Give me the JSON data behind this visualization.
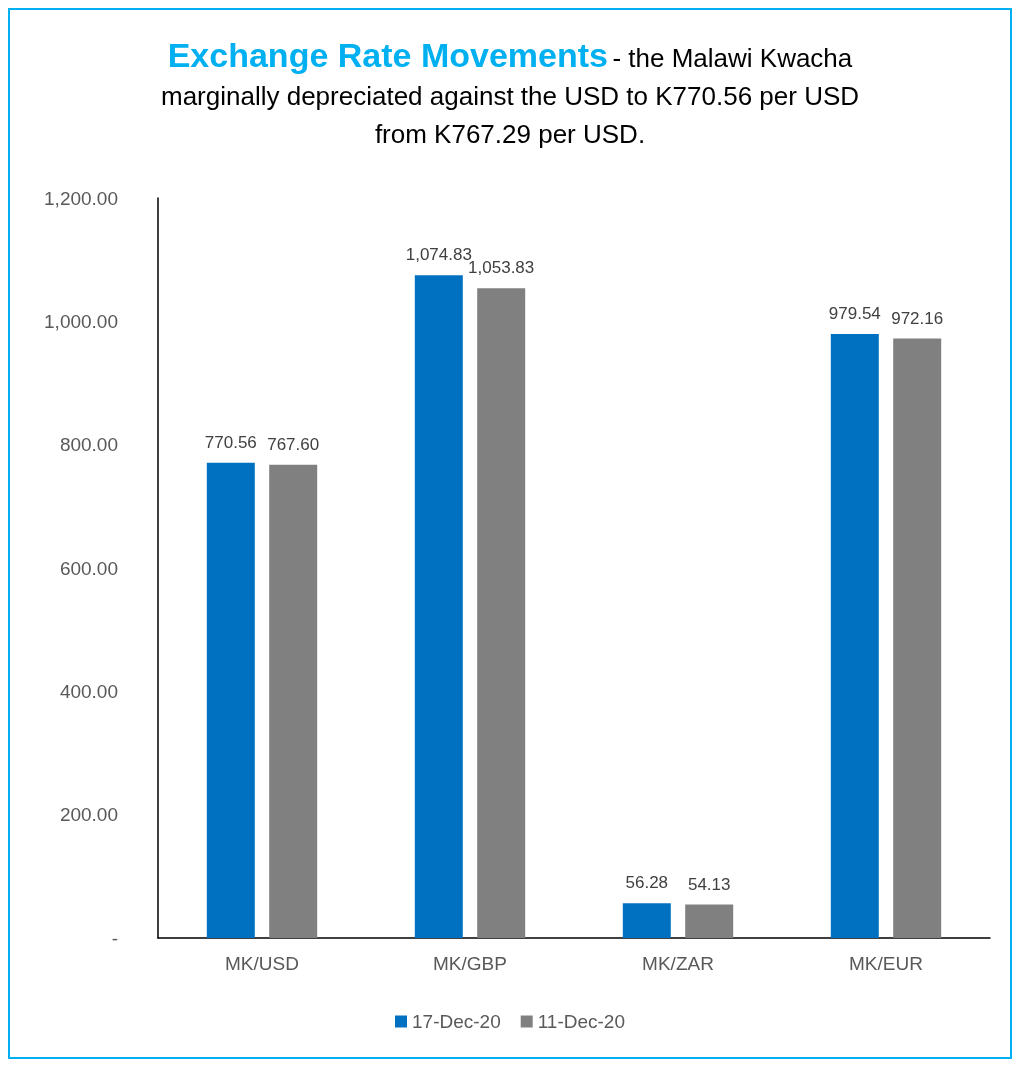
{
  "chart_data": {
    "type": "bar",
    "title": "Exchange Rate Movements",
    "subtitle": "- the Malawi Kwacha marginally depreciated against the USD to K770.56 per USD from  K767.29 per USD.",
    "categories": [
      "MK/USD",
      "MK/GBP",
      "MK/ZAR",
      "MK/EUR"
    ],
    "series": [
      {
        "name": "17-Dec-20",
        "color": "#0070c0",
        "values": [
          770.56,
          1074.83,
          56.28,
          979.54
        ],
        "value_labels": [
          "770.56",
          "1,074.83",
          "56.28",
          "979.54"
        ]
      },
      {
        "name": "11-Dec-20",
        "color": "#808080",
        "values": [
          767.6,
          1053.83,
          54.13,
          972.16
        ],
        "value_labels": [
          "767.60",
          "1,053.83",
          "54.13",
          "972.16"
        ]
      }
    ],
    "ylim": [
      0,
      1200
    ],
    "yticks": [
      {
        "value": 0,
        "label": "-"
      },
      {
        "value": 200,
        "label": "200.00"
      },
      {
        "value": 400,
        "label": "400.00"
      },
      {
        "value": 600,
        "label": "600.00"
      },
      {
        "value": 800,
        "label": "800.00"
      },
      {
        "value": 1000,
        "label": "1,000.00"
      },
      {
        "value": 1200,
        "label": "1,200.00"
      }
    ],
    "grid": false,
    "legend": "bottom"
  }
}
